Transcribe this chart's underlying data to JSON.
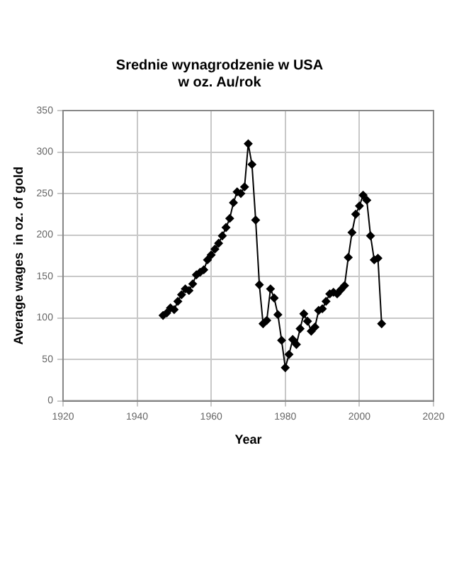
{
  "chart_data": {
    "type": "line",
    "title": "Srednie wynagrodzenie w USA\nw oz. Au/rok",
    "xlabel": "Year",
    "ylabel": "Average wages  in oz. of gold",
    "x": [
      1947,
      1948,
      1949,
      1950,
      1951,
      1952,
      1953,
      1954,
      1955,
      1956,
      1957,
      1958,
      1959,
      1960,
      1961,
      1962,
      1963,
      1964,
      1965,
      1966,
      1967,
      1968,
      1969,
      1970,
      1971,
      1972,
      1973,
      1974,
      1975,
      1976,
      1977,
      1978,
      1979,
      1980,
      1981,
      1982,
      1983,
      1984,
      1985,
      1986,
      1987,
      1988,
      1989,
      1990,
      1991,
      1992,
      1993,
      1994,
      1995,
      1996,
      1997,
      1998,
      1999,
      2000,
      2001,
      2002,
      2003,
      2004,
      2005,
      2006
    ],
    "series": [
      {
        "color": "#000000",
        "values": [
          103,
          106,
          112,
          110,
          120,
          128,
          135,
          133,
          141,
          152,
          155,
          158,
          170,
          176,
          183,
          190,
          199,
          209,
          220,
          239,
          252,
          250,
          258,
          310,
          285,
          218,
          140,
          93,
          97,
          135,
          124,
          104,
          73,
          40,
          56,
          74,
          68,
          87,
          105,
          96,
          84,
          89,
          109,
          111,
          120,
          129,
          131,
          129,
          134,
          139,
          173,
          203,
          225,
          235,
          248,
          242,
          199,
          170,
          172,
          93
        ]
      }
    ],
    "xlim": [
      1920,
      2020
    ],
    "xticks": [
      1920,
      1940,
      1960,
      1980,
      2000,
      2020
    ],
    "ylim": [
      0,
      350
    ],
    "yticks": [
      0,
      50,
      100,
      150,
      200,
      250,
      300,
      350
    ],
    "grid": true,
    "legend": false,
    "marker": "diamond",
    "line_style": "solid"
  }
}
